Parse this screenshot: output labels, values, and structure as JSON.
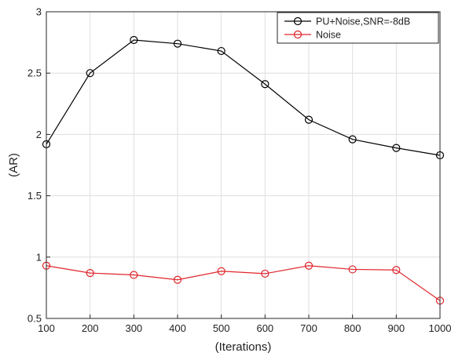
{
  "chart_data": {
    "type": "line",
    "xlabel": "(Iterations)",
    "ylabel": "(AR)",
    "x": [
      100,
      200,
      300,
      400,
      500,
      600,
      700,
      800,
      900,
      1000
    ],
    "xlim": [
      100,
      1000
    ],
    "ylim": [
      0.5,
      3
    ],
    "xticks": [
      "100",
      "200",
      "300",
      "400",
      "500",
      "600",
      "700",
      "800",
      "900",
      "1000"
    ],
    "yticks": [
      "0.5",
      "1",
      "1.5",
      "2",
      "2.5",
      "3"
    ],
    "grid": true,
    "legend_position": "top-right",
    "series": [
      {
        "name": "PU+Noise,SNR=-8dB",
        "color": "#000000",
        "marker": "circle",
        "values": [
          1.92,
          2.5,
          2.77,
          2.74,
          2.68,
          2.41,
          2.12,
          1.96,
          1.89,
          1.83
        ]
      },
      {
        "name": "Noise",
        "color": "#e0242b",
        "marker": "circle",
        "values": [
          0.93,
          0.87,
          0.855,
          0.815,
          0.885,
          0.865,
          0.93,
          0.9,
          0.895,
          0.645
        ]
      }
    ]
  }
}
